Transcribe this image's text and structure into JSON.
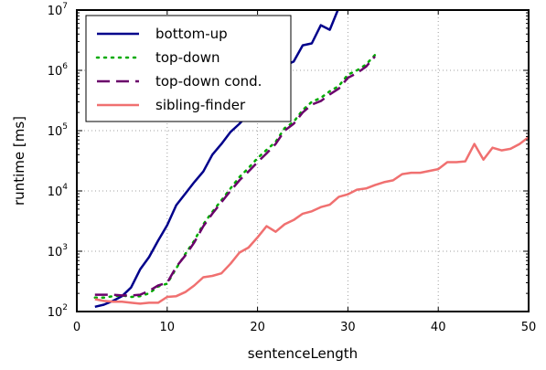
{
  "chart_data": {
    "type": "line",
    "title": "",
    "xlabel": "sentenceLength",
    "ylabel": "runtime [ms]",
    "xlim": [
      0,
      50
    ],
    "ylim": [
      100,
      10000000
    ],
    "yscale": "log",
    "grid": true,
    "legend": "top-left",
    "x_ticks": [
      0,
      10,
      20,
      30,
      40,
      50
    ],
    "x_tick_labels": [
      "0",
      "10",
      "20",
      "30",
      "40",
      "50"
    ],
    "y_ticks": [
      100,
      1000,
      10000,
      100000,
      1000000,
      10000000
    ],
    "y_tick_labels": [
      {
        "base": "10",
        "exp": "2"
      },
      {
        "base": "10",
        "exp": "3"
      },
      {
        "base": "10",
        "exp": "4"
      },
      {
        "base": "10",
        "exp": "5"
      },
      {
        "base": "10",
        "exp": "6"
      },
      {
        "base": "10",
        "exp": "7"
      }
    ],
    "series": [
      {
        "name": "bottom-up",
        "color": "#00008b",
        "style": "solid",
        "x": [
          2,
          3,
          4,
          5,
          6,
          7,
          8,
          9,
          10,
          11,
          12,
          13,
          14,
          15,
          16,
          17,
          18,
          19,
          20,
          21,
          22,
          23,
          24,
          25,
          26,
          27,
          28,
          29
        ],
        "y": [
          120,
          130,
          150,
          180,
          250,
          500,
          800,
          1500,
          2700,
          5800,
          9000,
          14000,
          21000,
          40000,
          60000,
          95000,
          130000,
          190000,
          280000,
          400000,
          650000,
          1200000,
          1400000,
          2600000,
          2800000,
          5600000,
          4700000,
          11000000
        ]
      },
      {
        "name": "top-down",
        "color": "#00aa00",
        "style": "dotted",
        "x": [
          2,
          3,
          4,
          5,
          6,
          7,
          8,
          9,
          10,
          11,
          12,
          13,
          14,
          15,
          16,
          17,
          18,
          19,
          20,
          21,
          22,
          23,
          24,
          25,
          26,
          27,
          28,
          29,
          30,
          31,
          32,
          33
        ],
        "y": [
          170,
          170,
          180,
          185,
          175,
          180,
          200,
          260,
          290,
          520,
          900,
          1500,
          2800,
          4500,
          7000,
          11000,
          17000,
          24000,
          35000,
          48000,
          65000,
          110000,
          140000,
          220000,
          300000,
          350000,
          450000,
          550000,
          850000,
          1000000,
          1250000,
          1800000
        ]
      },
      {
        "name": "top-down cond.",
        "color": "#6b006b",
        "style": "dashed",
        "x": [
          2,
          3,
          4,
          5,
          6,
          7,
          8,
          9,
          10,
          11,
          12,
          13,
          14,
          15,
          16,
          17,
          18,
          19,
          20,
          21,
          22,
          23,
          24,
          25,
          26,
          27,
          28,
          29,
          30,
          31,
          32,
          33
        ],
        "y": [
          190,
          190,
          190,
          185,
          185,
          190,
          220,
          270,
          300,
          550,
          850,
          1400,
          2600,
          4200,
          6500,
          10000,
          15000,
          21000,
          30000,
          42000,
          60000,
          100000,
          130000,
          200000,
          270000,
          310000,
          400000,
          500000,
          750000,
          900000,
          1150000,
          1700000
        ]
      },
      {
        "name": "sibling-finder",
        "color": "#f07070",
        "style": "solid",
        "x": [
          2,
          3,
          4,
          5,
          6,
          7,
          8,
          9,
          10,
          11,
          12,
          13,
          14,
          15,
          16,
          17,
          18,
          19,
          20,
          21,
          22,
          23,
          24,
          25,
          26,
          27,
          28,
          29,
          30,
          31,
          32,
          33,
          34,
          35,
          36,
          37,
          38,
          39,
          40,
          41,
          42,
          43,
          44,
          45,
          46,
          47,
          48,
          49,
          50
        ],
        "y": [
          160,
          150,
          145,
          145,
          140,
          135,
          140,
          140,
          175,
          180,
          210,
          270,
          370,
          390,
          430,
          620,
          950,
          1150,
          1700,
          2600,
          2100,
          2800,
          3300,
          4200,
          4600,
          5400,
          5900,
          8000,
          8800,
          10500,
          11000,
          12500,
          14000,
          15000,
          19000,
          20000,
          20000,
          21500,
          23000,
          30000,
          30000,
          31000,
          60000,
          33000,
          52000,
          47000,
          50000,
          60000,
          78000
        ]
      }
    ]
  }
}
